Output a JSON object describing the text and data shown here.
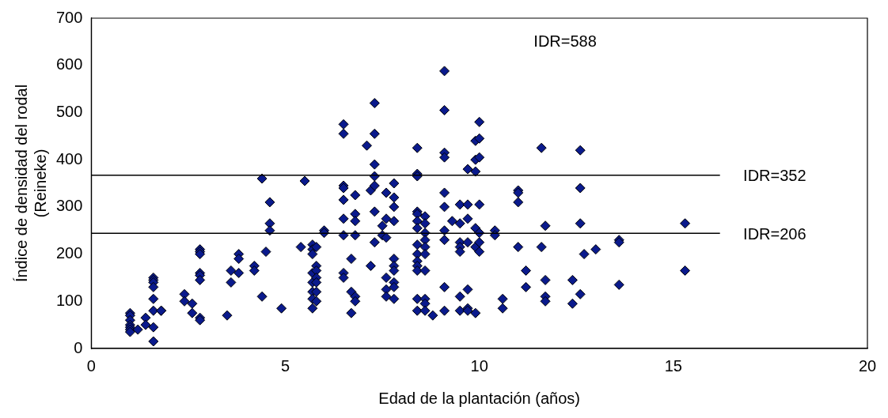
{
  "chart_data": {
    "type": "scatter",
    "xlabel": "Edad de la plantación (años)",
    "ylabel": "Índice de densidad del rodal (Reineke)",
    "xlim": [
      0,
      20
    ],
    "xticks": [
      0,
      5,
      10,
      15,
      20
    ],
    "ylim": [
      0,
      700
    ],
    "yticks": [
      0,
      100,
      200,
      300,
      400,
      500,
      600,
      700
    ],
    "grid": false,
    "legend": false,
    "marker": "diamond",
    "series": [
      {
        "color": "#0a1a8c",
        "x": [
          1.0,
          1.0,
          1.0,
          1.0,
          1.0,
          1.0,
          1.0,
          1.2,
          1.4,
          1.4,
          1.6,
          1.6,
          1.6,
          1.6,
          1.6,
          1.6,
          1.6,
          1.6,
          1.8,
          1.8,
          2.4,
          2.4,
          2.6,
          2.6,
          2.8,
          2.8,
          2.8,
          2.8,
          2.8,
          2.8,
          2.8,
          2.8,
          3.5,
          3.6,
          3.6,
          3.8,
          3.8,
          3.8,
          4.2,
          4.2,
          4.4,
          4.4,
          4.5,
          4.6,
          4.6,
          4.6,
          4.9,
          5.4,
          5.5,
          5.7,
          5.7,
          5.7,
          5.7,
          5.7,
          5.7,
          5.7,
          5.7,
          5.8,
          5.8,
          5.8,
          5.8,
          5.8,
          5.8,
          5.8,
          6.0,
          6.0,
          6.5,
          6.5,
          6.5,
          6.5,
          6.5,
          6.5,
          6.5,
          6.5,
          6.5,
          6.7,
          6.7,
          6.7,
          6.8,
          6.8,
          6.8,
          6.8,
          6.8,
          6.8,
          7.1,
          7.2,
          7.2,
          7.3,
          7.3,
          7.3,
          7.3,
          7.3,
          7.3,
          7.3,
          7.5,
          7.5,
          7.6,
          7.6,
          7.6,
          7.6,
          7.6,
          7.6,
          7.8,
          7.8,
          7.8,
          7.8,
          7.8,
          7.8,
          7.8,
          7.8,
          7.8,
          7.8,
          8.4,
          8.4,
          8.4,
          8.4,
          8.4,
          8.4,
          8.4,
          8.4,
          8.4,
          8.4,
          8.4,
          8.4,
          8.4,
          8.4,
          8.6,
          8.6,
          8.6,
          8.6,
          8.6,
          8.6,
          8.6,
          8.6,
          8.6,
          8.6,
          8.8,
          9.1,
          9.1,
          9.1,
          9.1,
          9.1,
          9.1,
          9.1,
          9.1,
          9.1,
          9.1,
          9.3,
          9.5,
          9.5,
          9.5,
          9.5,
          9.5,
          9.5,
          9.5,
          9.7,
          9.7,
          9.7,
          9.7,
          9.7,
          9.7,
          9.7,
          9.9,
          9.9,
          9.9,
          9.9,
          9.9,
          9.9,
          10.0,
          10.0,
          10.0,
          10.0,
          10.0,
          10.0,
          10.0,
          10.4,
          10.4,
          10.6,
          10.6,
          11.0,
          11.0,
          11.0,
          11.0,
          11.2,
          11.2,
          11.6,
          11.6,
          11.7,
          11.7,
          11.7,
          11.7,
          12.4,
          12.4,
          12.6,
          12.6,
          12.6,
          12.6,
          12.7,
          13.0,
          13.6,
          13.6,
          13.6,
          15.3,
          15.3
        ],
        "values": [
          75,
          70,
          60,
          50,
          45,
          40,
          35,
          40,
          65,
          50,
          150,
          145,
          140,
          130,
          105,
          80,
          45,
          15,
          80,
          80,
          115,
          100,
          95,
          75,
          210,
          205,
          200,
          160,
          155,
          145,
          65,
          60,
          70,
          165,
          140,
          200,
          190,
          160,
          175,
          165,
          360,
          110,
          205,
          310,
          265,
          250,
          85,
          215,
          355,
          220,
          210,
          200,
          160,
          140,
          120,
          105,
          85,
          215,
          175,
          165,
          150,
          140,
          120,
          100,
          250,
          245,
          475,
          455,
          345,
          340,
          315,
          275,
          240,
          160,
          150,
          190,
          120,
          75,
          325,
          285,
          270,
          240,
          110,
          100,
          430,
          335,
          175,
          520,
          455,
          390,
          365,
          345,
          290,
          225,
          260,
          240,
          330,
          275,
          235,
          150,
          125,
          110,
          350,
          320,
          300,
          270,
          190,
          175,
          165,
          140,
          130,
          105,
          425,
          370,
          365,
          290,
          285,
          270,
          255,
          220,
          200,
          185,
          175,
          165,
          105,
          80,
          280,
          265,
          245,
          230,
          215,
          200,
          165,
          105,
          95,
          80,
          70,
          588,
          505,
          415,
          405,
          330,
          300,
          250,
          230,
          130,
          80,
          270,
          305,
          265,
          225,
          215,
          205,
          110,
          80,
          380,
          305,
          275,
          225,
          125,
          85,
          80,
          440,
          400,
          375,
          255,
          215,
          75,
          480,
          445,
          405,
          305,
          245,
          225,
          205,
          250,
          240,
          105,
          85,
          335,
          330,
          310,
          215,
          165,
          130,
          425,
          215,
          260,
          145,
          110,
          100,
          145,
          95,
          420,
          340,
          265,
          115,
          200,
          210,
          230,
          225,
          135,
          265,
          165
        ]
      }
    ],
    "ref_lines": [
      {
        "axis": "y",
        "value": 367,
        "color": "#000000"
      },
      {
        "axis": "y",
        "value": 244,
        "color": "#000000"
      }
    ],
    "annotations": [
      "IDR=588",
      "IDR=352",
      "IDR=206"
    ]
  }
}
